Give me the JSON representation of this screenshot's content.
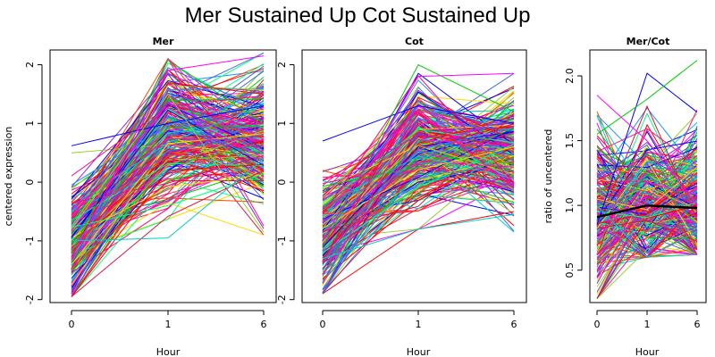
{
  "figure": {
    "title": "Mer Sustained Up Cot Sustained Up"
  },
  "chart_data": [
    {
      "type": "line",
      "title": "Mer",
      "xlabel": "Hour",
      "ylabel": "centered expression",
      "categories": [
        "0",
        "1",
        "6"
      ],
      "xticks": [
        "0",
        "1",
        "6"
      ],
      "yticks": [
        "-2",
        "-1",
        "0",
        "1",
        "2"
      ],
      "ylim": [
        -2.05,
        2.25
      ],
      "n_series": 300,
      "series_ranges": [
        [
          -1.95,
          0.65
        ],
        [
          -1.0,
          2.1
        ],
        [
          -0.9,
          2.2
        ]
      ],
      "series_centers": [
        -1.05,
        0.85,
        0.7
      ],
      "series": [
        {
          "values": [
            -1.95,
            0.2,
            0.3
          ]
        },
        {
          "values": [
            0.62,
            1.0,
            1.3
          ]
        },
        {
          "values": [
            -1.2,
            2.08,
            1.0
          ]
        },
        {
          "values": [
            -1.3,
            1.9,
            2.15
          ]
        },
        {
          "values": [
            -1.0,
            -0.95,
            0.4
          ]
        },
        {
          "values": [
            -0.8,
            1.5,
            -0.85
          ]
        }
      ],
      "colors": [
        "#ff0000",
        "#0000ff",
        "#00cc00",
        "#ff00ff",
        "#00cccc",
        "#9acd32",
        "#ff007f",
        "#1e90ff",
        "#8a2be2",
        "#ff4500",
        "#00ff7f",
        "#dc143c",
        "#ffd700",
        "#4169e1",
        "#ff1493"
      ]
    },
    {
      "type": "line",
      "title": "Cot",
      "xlabel": "Hour",
      "ylabel": "",
      "categories": [
        "0",
        "1",
        "6"
      ],
      "xticks": [
        "0",
        "1",
        "6"
      ],
      "yticks": [
        "-2",
        "-1",
        "0",
        "1",
        "2"
      ],
      "ylim": [
        -2.05,
        2.25
      ],
      "n_series": 300,
      "series_ranges": [
        [
          -1.9,
          0.75
        ],
        [
          -0.8,
          2.0
        ],
        [
          -0.85,
          1.85
        ]
      ],
      "series_centers": [
        -0.95,
        0.65,
        0.45
      ],
      "series": [
        {
          "values": [
            -1.9,
            -0.8,
            -0.5
          ]
        },
        {
          "values": [
            0.7,
            1.3,
            1.0
          ]
        },
        {
          "values": [
            -1.1,
            2.0,
            1.2
          ]
        },
        {
          "values": [
            -1.0,
            1.8,
            1.85
          ]
        },
        {
          "values": [
            -1.3,
            -0.8,
            -0.55
          ]
        }
      ],
      "colors": [
        "#ff0000",
        "#0000ff",
        "#00cc00",
        "#ff00ff",
        "#00cccc",
        "#9acd32",
        "#ff007f",
        "#1e90ff",
        "#8a2be2",
        "#ff4500",
        "#00ff7f",
        "#dc143c",
        "#ffd700",
        "#4169e1",
        "#ff1493"
      ]
    },
    {
      "type": "line",
      "title": "Mer/Cot",
      "xlabel": "Hour",
      "ylabel": "ratio of uncentered",
      "categories": [
        "0",
        "1",
        "6"
      ],
      "xticks": [
        "0",
        "1",
        "6"
      ],
      "yticks": [
        "0.5",
        "1.0",
        "1.5",
        "2.0"
      ],
      "ylim": [
        0.25,
        2.2
      ],
      "n_series": 300,
      "series_ranges": [
        [
          0.28,
          1.85
        ],
        [
          0.6,
          2.02
        ],
        [
          0.62,
          2.12
        ]
      ],
      "series_centers": [
        0.95,
        1.0,
        1.0
      ],
      "mean_line": {
        "values": [
          0.91,
          1.0,
          0.98
        ],
        "color": "#000000"
      },
      "series": [
        {
          "values": [
            0.28,
            0.9,
            1.0
          ]
        },
        {
          "values": [
            0.85,
            2.02,
            1.72
          ]
        },
        {
          "values": [
            1.55,
            1.82,
            2.12
          ]
        },
        {
          "values": [
            1.85,
            1.5,
            1.0
          ]
        },
        {
          "values": [
            1.0,
            0.6,
            0.8
          ]
        }
      ],
      "colors": [
        "#ff0000",
        "#0000ff",
        "#00cc00",
        "#ff00ff",
        "#00cccc",
        "#9acd32",
        "#ff007f",
        "#1e90ff",
        "#8a2be2",
        "#ff4500",
        "#00ff7f",
        "#dc143c",
        "#ffd700",
        "#4169e1",
        "#ff1493"
      ]
    }
  ]
}
